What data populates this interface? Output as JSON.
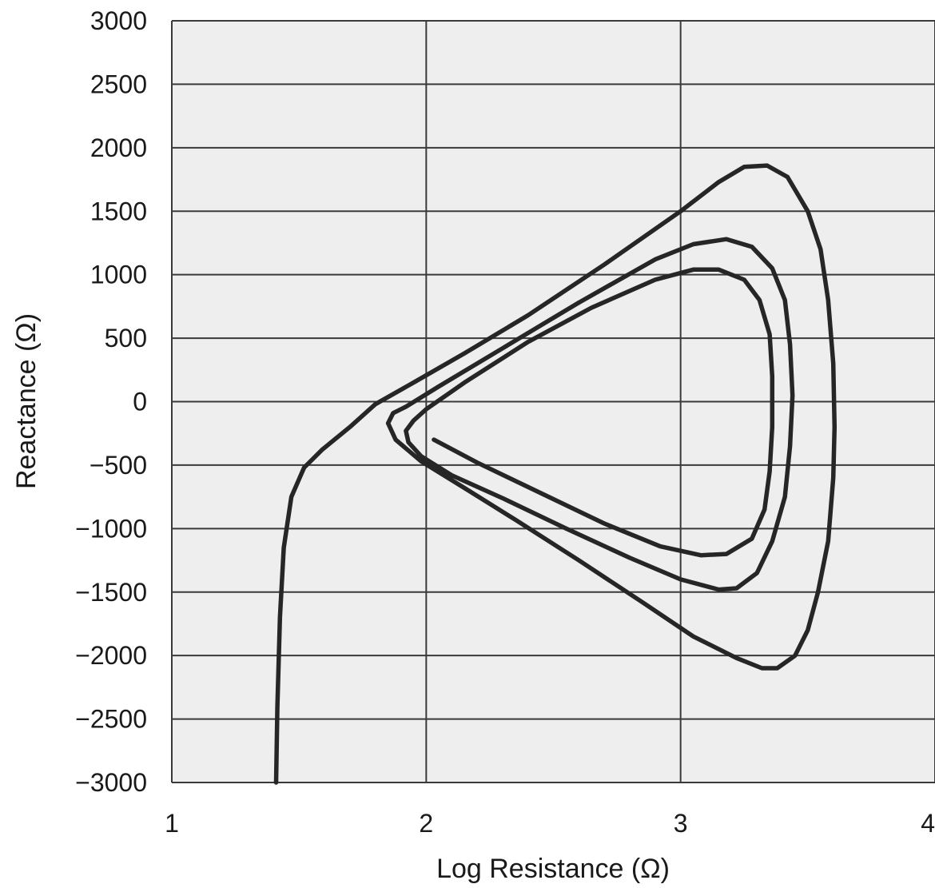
{
  "chart_data": {
    "type": "line",
    "title": "",
    "xlabel": "Log Resistance (Ω)",
    "ylabel": "Reactance (Ω)",
    "xlim": [
      1,
      4
    ],
    "ylim": [
      -3000,
      3000
    ],
    "x_ticks": [
      1,
      2,
      3,
      4
    ],
    "y_ticks": [
      3000,
      2500,
      2000,
      1500,
      1000,
      500,
      0,
      -500,
      -1000,
      -1500,
      -2000,
      -2500,
      -3000
    ],
    "x_tick_labels": [
      "1",
      "2",
      "3",
      "4"
    ],
    "y_tick_labels": [
      "3000",
      "2500",
      "2000",
      "1500",
      "1000",
      "500",
      "0",
      "−500",
      "−1000",
      "−1500",
      "−2000",
      "−2500",
      "−3000"
    ],
    "grid": true,
    "background_color": "#eeeeee",
    "line_color": "#262626",
    "series": [
      {
        "points": [
          [
            1.41,
            -3000
          ],
          [
            1.415,
            -2400
          ],
          [
            1.425,
            -1700
          ],
          [
            1.44,
            -1150
          ],
          [
            1.47,
            -750
          ],
          [
            1.52,
            -520
          ],
          [
            1.59,
            -380
          ],
          [
            1.7,
            -200
          ],
          [
            1.8,
            -20
          ],
          [
            1.95,
            150
          ],
          [
            2.15,
            380
          ],
          [
            2.4,
            680
          ],
          [
            2.7,
            1080
          ],
          [
            3.0,
            1500
          ],
          [
            3.15,
            1730
          ],
          [
            3.25,
            1850
          ],
          [
            3.34,
            1860
          ],
          [
            3.42,
            1770
          ],
          [
            3.5,
            1500
          ],
          [
            3.55,
            1200
          ],
          [
            3.58,
            800
          ],
          [
            3.6,
            300
          ],
          [
            3.605,
            -200
          ],
          [
            3.6,
            -600
          ],
          [
            3.58,
            -1100
          ],
          [
            3.54,
            -1500
          ],
          [
            3.5,
            -1800
          ],
          [
            3.45,
            -2000
          ],
          [
            3.38,
            -2100
          ],
          [
            3.32,
            -2100
          ],
          [
            3.22,
            -2020
          ],
          [
            3.05,
            -1850
          ],
          [
            2.85,
            -1580
          ],
          [
            2.6,
            -1250
          ],
          [
            2.35,
            -930
          ],
          [
            2.15,
            -680
          ],
          [
            1.98,
            -470
          ],
          [
            1.88,
            -300
          ],
          [
            1.85,
            -170
          ],
          [
            1.87,
            -90
          ],
          [
            1.92,
            -40
          ],
          [
            2.05,
            120
          ],
          [
            2.3,
            420
          ],
          [
            2.6,
            780
          ],
          [
            2.9,
            1120
          ],
          [
            3.05,
            1240
          ],
          [
            3.18,
            1280
          ],
          [
            3.28,
            1220
          ],
          [
            3.36,
            1050
          ],
          [
            3.41,
            800
          ],
          [
            3.43,
            450
          ],
          [
            3.44,
            50
          ],
          [
            3.43,
            -350
          ],
          [
            3.41,
            -750
          ],
          [
            3.36,
            -1100
          ],
          [
            3.3,
            -1350
          ],
          [
            3.22,
            -1470
          ],
          [
            3.15,
            -1480
          ],
          [
            3.0,
            -1400
          ],
          [
            2.8,
            -1230
          ],
          [
            2.55,
            -1000
          ],
          [
            2.3,
            -760
          ],
          [
            2.1,
            -580
          ],
          [
            1.98,
            -430
          ],
          [
            1.93,
            -320
          ],
          [
            1.92,
            -230
          ],
          [
            1.95,
            -150
          ],
          [
            2.0,
            -60
          ],
          [
            2.15,
            150
          ],
          [
            2.4,
            470
          ],
          [
            2.65,
            740
          ],
          [
            2.9,
            960
          ],
          [
            3.05,
            1040
          ],
          [
            3.15,
            1040
          ],
          [
            3.25,
            960
          ],
          [
            3.31,
            800
          ],
          [
            3.35,
            530
          ],
          [
            3.36,
            200
          ],
          [
            3.36,
            -200
          ],
          [
            3.35,
            -550
          ],
          [
            3.33,
            -850
          ],
          [
            3.28,
            -1080
          ],
          [
            3.18,
            -1200
          ],
          [
            3.08,
            -1210
          ],
          [
            2.92,
            -1140
          ],
          [
            2.7,
            -960
          ],
          [
            2.45,
            -720
          ],
          [
            2.2,
            -480
          ],
          [
            2.03,
            -300
          ]
        ]
      }
    ]
  }
}
